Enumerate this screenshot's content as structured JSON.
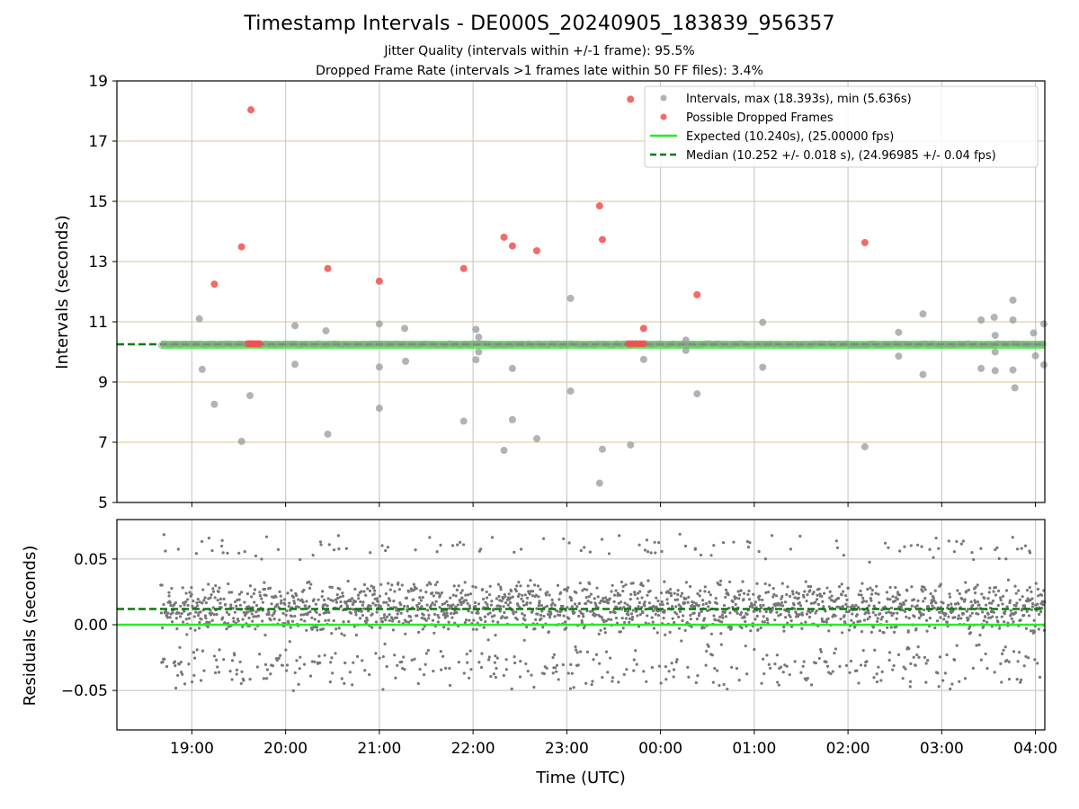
{
  "chart_data": [
    {
      "type": "scatter",
      "title": "Timestamp Intervals - DE000S_20240905_183839_956357",
      "subtitles": [
        "Jitter Quality (intervals within +/-1 frame): 95.5%",
        "Dropped Frame Rate (intervals >1 frames late within 50 FF files): 3.4%"
      ],
      "ylabel": "Intervals (seconds)",
      "ylim": [
        5,
        19
      ],
      "yticks": [
        "5",
        "7",
        "9",
        "11",
        "13",
        "15",
        "17",
        "19"
      ],
      "xlim_hours": [
        18.2,
        28.1
      ],
      "grid": true,
      "legend_position": "top-right",
      "legend": [
        "Intervals, max (18.393s), min (5.636s)",
        "Possible Dropped Frames",
        "Expected (10.240s), (25.00000 fps)",
        "Median (10.252 +/- 0.018 s), (24.96985 +/- 0.04 fps)"
      ],
      "expected_interval": 10.24,
      "median_interval": 10.252,
      "baseline_range_hours": [
        18.67,
        28.1
      ],
      "series": [
        {
          "name": "Intervals, max (18.393s), min (5.636s)",
          "color": "#999999",
          "points": [
            [
              19.08,
              11.1
            ],
            [
              19.11,
              9.42
            ],
            [
              19.24,
              8.26
            ],
            [
              19.53,
              7.03
            ],
            [
              19.62,
              8.55
            ],
            [
              20.1,
              10.87
            ],
            [
              20.1,
              9.59
            ],
            [
              20.43,
              10.7
            ],
            [
              20.45,
              7.27
            ],
            [
              21.0,
              10.93
            ],
            [
              21.0,
              9.5
            ],
            [
              21.0,
              8.13
            ],
            [
              21.27,
              10.78
            ],
            [
              21.28,
              9.69
            ],
            [
              21.9,
              7.7
            ],
            [
              22.03,
              10.75
            ],
            [
              22.03,
              9.74
            ],
            [
              22.06,
              10.49
            ],
            [
              22.06,
              10.0
            ],
            [
              22.33,
              6.73
            ],
            [
              22.42,
              9.45
            ],
            [
              22.42,
              7.75
            ],
            [
              22.68,
              7.12
            ],
            [
              23.04,
              11.78
            ],
            [
              23.04,
              8.7
            ],
            [
              23.35,
              5.64
            ],
            [
              23.38,
              6.77
            ],
            [
              23.68,
              6.91
            ],
            [
              23.82,
              9.75
            ],
            [
              24.27,
              10.39
            ],
            [
              24.27,
              10.05
            ],
            [
              24.39,
              8.61
            ],
            [
              25.09,
              10.98
            ],
            [
              25.09,
              9.49
            ],
            [
              26.18,
              6.85
            ],
            [
              26.54,
              10.65
            ],
            [
              26.54,
              9.86
            ],
            [
              26.8,
              11.26
            ],
            [
              26.8,
              9.25
            ],
            [
              27.42,
              11.06
            ],
            [
              27.42,
              9.45
            ],
            [
              27.56,
              11.15
            ],
            [
              27.57,
              10.55
            ],
            [
              27.57,
              10.0
            ],
            [
              27.57,
              9.38
            ],
            [
              27.76,
              11.72
            ],
            [
              27.76,
              11.06
            ],
            [
              27.76,
              9.4
            ],
            [
              27.78,
              8.81
            ],
            [
              27.98,
              10.63
            ],
            [
              28.0,
              9.87
            ],
            [
              28.09,
              10.93
            ],
            [
              28.09,
              9.57
            ]
          ]
        },
        {
          "name": "Possible Dropped Frames",
          "color": "#f05050",
          "points": [
            [
              19.24,
              12.25
            ],
            [
              19.53,
              13.49
            ],
            [
              19.63,
              18.04
            ],
            [
              20.45,
              12.77
            ],
            [
              21.0,
              12.35
            ],
            [
              21.9,
              12.77
            ],
            [
              22.33,
              13.81
            ],
            [
              22.42,
              13.52
            ],
            [
              22.68,
              13.36
            ],
            [
              23.35,
              14.85
            ],
            [
              23.38,
              13.73
            ],
            [
              23.68,
              18.39
            ],
            [
              23.82,
              10.78
            ],
            [
              24.39,
              11.9
            ],
            [
              26.18,
              13.63
            ],
            [
              19.6,
              10.27
            ],
            [
              19.63,
              10.27
            ],
            [
              19.66,
              10.27
            ],
            [
              19.69,
              10.27
            ],
            [
              19.72,
              10.27
            ],
            [
              23.66,
              10.27
            ],
            [
              23.7,
              10.27
            ],
            [
              23.74,
              10.27
            ],
            [
              23.78,
              10.27
            ],
            [
              23.82,
              10.27
            ]
          ]
        }
      ]
    },
    {
      "type": "scatter",
      "ylabel": "Residuals (seconds)",
      "xlabel": "Time (UTC)",
      "ylim": [
        -0.08,
        0.08
      ],
      "yticks": [
        "−0.05",
        "0.00",
        "0.05"
      ],
      "ytick_values": [
        -0.05,
        0.0,
        0.05
      ],
      "xticks": [
        "19:00",
        "20:00",
        "21:00",
        "22:00",
        "23:00",
        "00:00",
        "01:00",
        "02:00",
        "03:00",
        "04:00"
      ],
      "xtick_hours": [
        19,
        20,
        21,
        22,
        23,
        24,
        25,
        26,
        27,
        28
      ],
      "xlim_hours": [
        18.2,
        28.1
      ],
      "grid": true,
      "expected_residual": 0.0,
      "median_residual": 0.012,
      "series": [
        {
          "name": "",
          "color": "#777777",
          "cluster_centers": [
            0.013,
            -0.031,
            0.058
          ],
          "cluster_weights": [
            0.8,
            0.15,
            0.05
          ],
          "x_range_hours": [
            18.67,
            28.1
          ]
        }
      ]
    }
  ]
}
